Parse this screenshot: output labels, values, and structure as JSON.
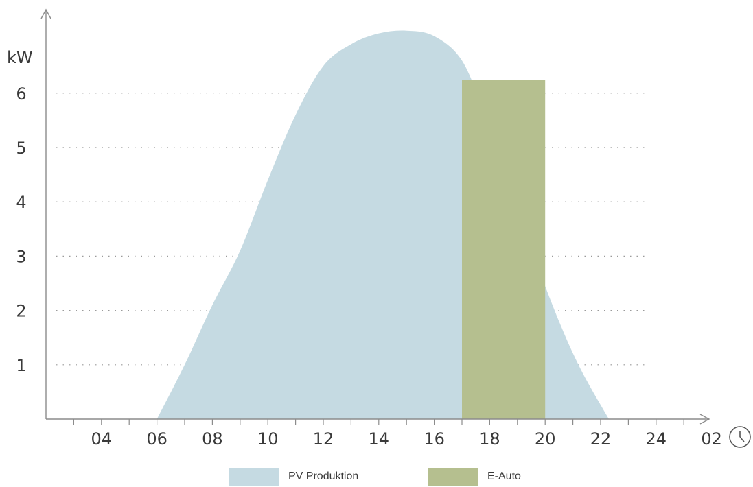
{
  "chart_data": {
    "type": "area",
    "ylabel": "kW",
    "y_ticks": [
      1,
      2,
      3,
      4,
      5,
      6
    ],
    "x_ticks": [
      "04",
      "06",
      "08",
      "10",
      "12",
      "14",
      "16",
      "18",
      "20",
      "22",
      "24",
      "02"
    ],
    "grid": "horizontal dotted",
    "clock_icon": "clock-icon",
    "series": [
      {
        "name": "PV Produktion",
        "type": "area",
        "color": "#c5dae2",
        "points": [
          [
            6.0,
            0.0
          ],
          [
            7.0,
            1.0
          ],
          [
            8.0,
            2.1
          ],
          [
            9.0,
            3.1
          ],
          [
            10.0,
            4.4
          ],
          [
            11.0,
            5.6
          ],
          [
            12.0,
            6.5
          ],
          [
            13.0,
            6.9
          ],
          [
            14.0,
            7.1
          ],
          [
            15.0,
            7.15
          ],
          [
            16.0,
            7.05
          ],
          [
            17.0,
            6.6
          ],
          [
            17.8,
            5.6
          ],
          [
            18.5,
            4.3
          ],
          [
            19.5,
            3.1
          ],
          [
            20.5,
            1.8
          ],
          [
            21.3,
            0.9
          ],
          [
            22.3,
            0.0
          ]
        ]
      },
      {
        "name": "E-Auto",
        "type": "bar",
        "color": "#b5bf8f",
        "x_start": 17.0,
        "x_end": 20.0,
        "value": 6.25
      }
    ]
  },
  "legend": [
    {
      "label": "PV Produktion",
      "color": "#c5dae2"
    },
    {
      "label": "E-Auto",
      "color": "#b5bf8f"
    }
  ]
}
